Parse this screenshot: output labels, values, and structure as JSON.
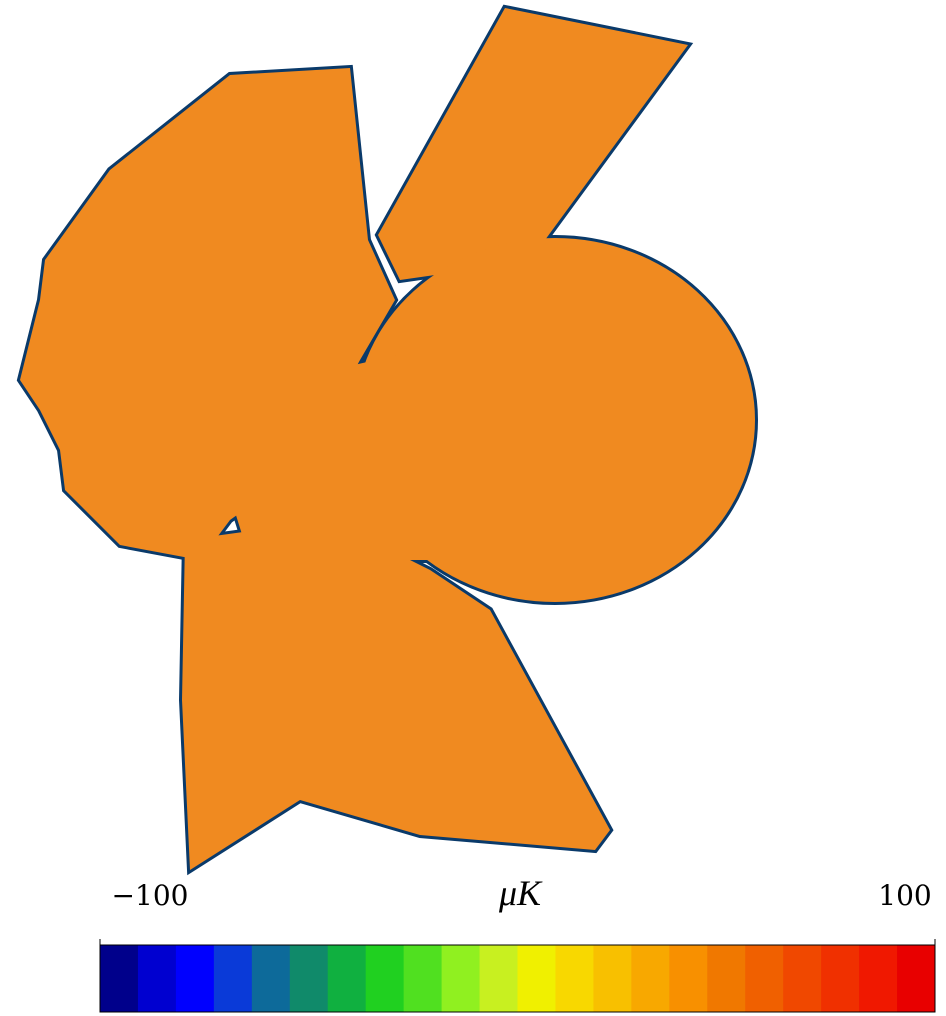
{
  "colorbar": {
    "label": "μK",
    "ticks": [
      {
        "value": -100,
        "label": "−100"
      },
      100
    ],
    "range": [
      -100,
      100
    ],
    "colors": [
      "#00008b",
      "#0000d0",
      "#0000ff",
      "#0a3ad8",
      "#0d6a9a",
      "#108a6a",
      "#10b040",
      "#20d020",
      "#50e020",
      "#90f020",
      "#c8f020",
      "#f0f000",
      "#f8d800",
      "#f8c000",
      "#f8a800",
      "#f89000",
      "#f07800",
      "#f06000",
      "#f04800",
      "#f03000",
      "#f01800",
      "#e80000"
    ]
  }
}
